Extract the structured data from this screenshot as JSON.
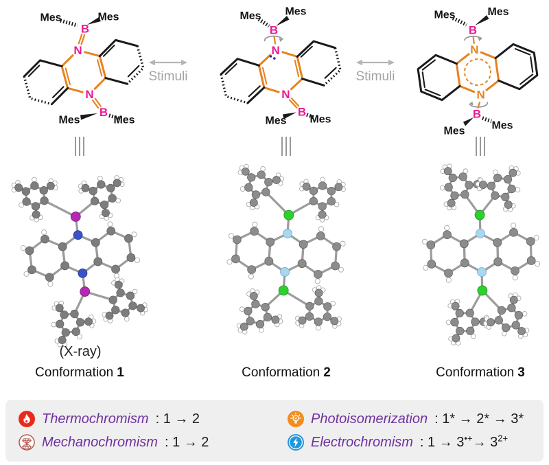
{
  "figure": {
    "mes_label": "Mes",
    "boron_label": "B",
    "nitrogen_label": "N",
    "stimuli_label": "Stimuli",
    "xray_note": "(X-ray)",
    "conformations": [
      {
        "name": "Conformation",
        "number": "1"
      },
      {
        "name": "Conformation",
        "number": "2"
      },
      {
        "name": "Conformation",
        "number": "3"
      }
    ]
  },
  "colors": {
    "heteroatom_pink": "#ea1a96",
    "bond_orange": "#e8821e",
    "structure_black": "#1a1a1a",
    "stimuli_gray": "#a3a3a3",
    "rotation_gray": "#9a9a9a",
    "lone_pair_blue": "#2828aa",
    "legend_bg": "#efefef",
    "legend_purple": "#7030a0",
    "atoms": {
      "carbon_xray": "#7d7d7d",
      "carbon_dft": "#8c8c8c",
      "hydrogen": "#ffffff",
      "hydrogen_stroke": "#ababab",
      "bond": "#9c9c9c",
      "boron_xray": "#b428b4",
      "nitrogen_xray": "#3a52c8",
      "boron_dft": "#2dd12d",
      "nitrogen_dft": "#a9d7f2"
    }
  },
  "legend": {
    "items": [
      {
        "name": "Thermochromism",
        "suffix": ": 1 → 2",
        "icon": "flame-icon",
        "icon_color": "#e8291c"
      },
      {
        "name": "Mechanochromism",
        "suffix": ": 1 → 2",
        "icon": "diamond-press-icon",
        "icon_color": "#b2564e"
      },
      {
        "name": "Photoisomerization",
        "suffix": ": 1* → 2* → 3*",
        "icon": "lightbulb-icon",
        "icon_color": "#f28c1c"
      },
      {
        "name": "Electrochromism",
        "suffix_prefix": ": 1 → 3",
        "suffix_sup1": "•+",
        "suffix_mid": "→ 3",
        "suffix_sup2": "2+",
        "icon": "lightning-icon",
        "icon_color": "#2196e0"
      }
    ]
  }
}
